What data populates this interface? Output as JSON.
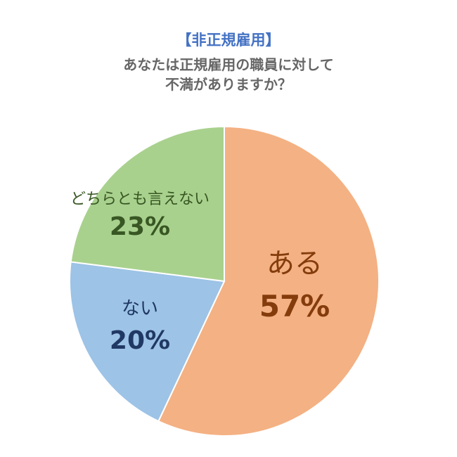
{
  "header": {
    "title": "【非正規雇用】",
    "subtitle_line1": "あなたは正規雇用の職員に対して",
    "subtitle_line2": "不満がありますか？"
  },
  "colors": {
    "title": "#4472C4",
    "slice_stroke": "#ffffff",
    "label_aru": "#843C0C",
    "label_nai": "#203864",
    "label_dochira": "#385723"
  },
  "chart_data": {
    "type": "pie",
    "title": "【非正規雇用】",
    "subtitle": "あなたは正規雇用の職員に対して不満がありますか？",
    "start_angle_deg": 0,
    "direction": "clockwise",
    "slices": [
      {
        "label": "ある",
        "value": 57,
        "value_label": "57%",
        "color": "#F4B183",
        "text_color": "#843C0C"
      },
      {
        "label": "ない",
        "value": 20,
        "value_label": "20%",
        "color": "#9DC3E6",
        "text_color": "#203864"
      },
      {
        "label": "どちらとも言えない",
        "value": 23,
        "value_label": "23%",
        "color": "#A9D18E",
        "text_color": "#385723"
      }
    ]
  }
}
